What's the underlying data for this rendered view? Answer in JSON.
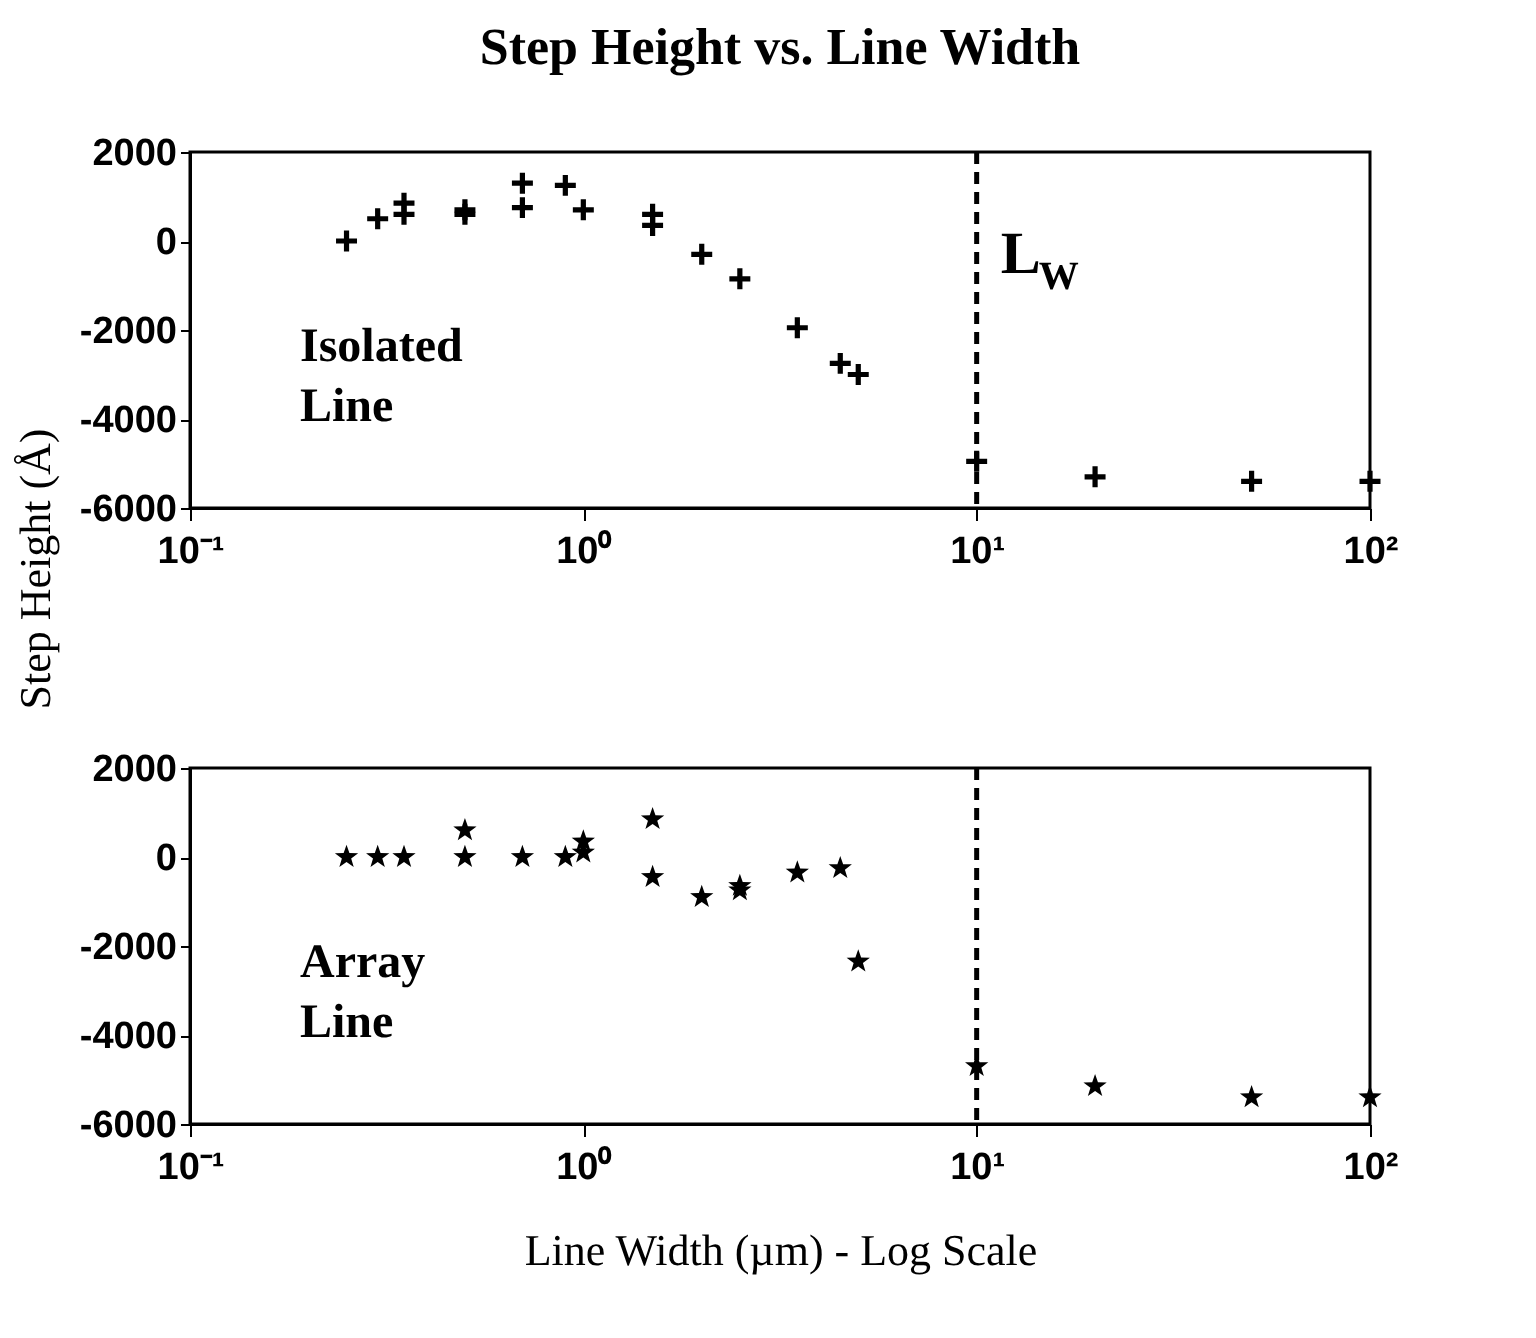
{
  "chart_data": [
    {
      "type": "scatter",
      "title": "Step Height vs. Line Width",
      "ylabel": "Step Height (Å)",
      "marker": "cross",
      "log": "x",
      "grid": false,
      "annotations": [
        "Isolated Line"
      ],
      "xlim": [
        0.1,
        100
      ],
      "xticks": [
        {
          "value": 0.1,
          "label": "10⁻¹"
        },
        {
          "value": 1,
          "label": "10⁰"
        },
        {
          "value": 10,
          "label": "10¹"
        },
        {
          "value": 100,
          "label": "10²"
        }
      ],
      "ylim": [
        -6000,
        2000
      ],
      "yticks": [
        -6000,
        -4000,
        -2000,
        0,
        2000
      ],
      "ref_lines": [
        {
          "axis": "x",
          "value": 10,
          "label": "L$_{W}$",
          "line_style": "dashed",
          "color": "#000000"
        }
      ],
      "series": [
        {
          "color": "#000000",
          "x": [
            0.25,
            0.3,
            0.35,
            0.35,
            0.5,
            0.5,
            0.7,
            0.7,
            0.9,
            1.0,
            1.5,
            1.5,
            2,
            2.5,
            3.5,
            4.5,
            5,
            10,
            20,
            50,
            100
          ],
          "values": [
            0,
            500,
            600,
            850,
            600,
            700,
            750,
            1300,
            1250,
            700,
            350,
            600,
            -300,
            -850,
            -1950,
            -2750,
            -3000,
            -4950,
            -5300,
            -5400,
            -5400
          ]
        }
      ]
    },
    {
      "type": "scatter",
      "xlabel": "Line Width (µm) - Log Scale",
      "marker": "star",
      "log": "x",
      "grid": false,
      "annotations": [
        "Array Line"
      ],
      "xlim": [
        0.1,
        100
      ],
      "xticks": [
        {
          "value": 0.1,
          "label": "10⁻¹"
        },
        {
          "value": 1,
          "label": "10⁰"
        },
        {
          "value": 10,
          "label": "10¹"
        },
        {
          "value": 100,
          "label": "10²"
        }
      ],
      "ylim": [
        -6000,
        2000
      ],
      "yticks": [
        -6000,
        -4000,
        -2000,
        0,
        2000
      ],
      "ref_lines": [
        {
          "axis": "x",
          "value": 10,
          "line_style": "dashed",
          "color": "#000000"
        }
      ],
      "series": [
        {
          "color": "#000000",
          "x": [
            0.25,
            0.3,
            0.35,
            0.5,
            0.5,
            0.7,
            0.9,
            1.0,
            1.0,
            1.5,
            1.5,
            2,
            2.5,
            2.5,
            3.5,
            4.5,
            5,
            10,
            20,
            50,
            100
          ],
          "values": [
            0,
            0,
            0,
            600,
            0,
            0,
            0,
            100,
            350,
            850,
            -450,
            -900,
            -650,
            -750,
            -350,
            -250,
            -2350,
            -4700,
            -5150,
            -5400,
            -5400
          ]
        }
      ]
    }
  ]
}
